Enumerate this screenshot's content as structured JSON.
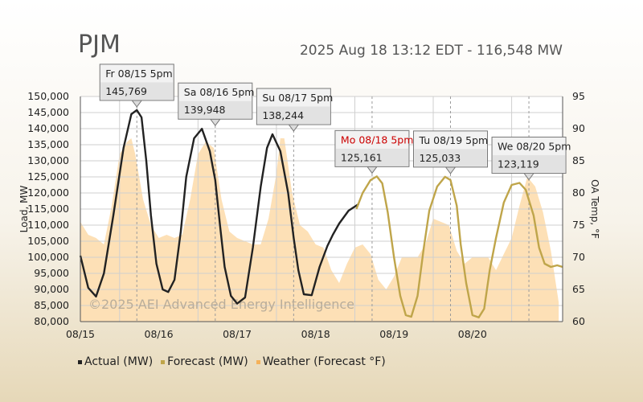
{
  "header": {
    "region": "PJM",
    "timestamp": "2025 Aug 18 13:12 EDT",
    "separator": " - ",
    "current_load": "116,548 MW"
  },
  "watermark": "©2025 AEI Advanced Energy Intelligence",
  "colors": {
    "actual": "#222222",
    "forecast": "#bfa54a",
    "weather": "#f5b25a",
    "weather_fill": "#fde0b6",
    "highlight_label": "#cc0000"
  },
  "legend": [
    {
      "label": "Actual (MW)",
      "color": "#222222"
    },
    {
      "label": "Forecast (MW)",
      "color": "#bfa54a"
    },
    {
      "label": "Weather (Forecast °F)",
      "color": "#f5b25a"
    }
  ],
  "chart_data": {
    "type": "line",
    "xlabel": "",
    "ylabel": "Load, MW",
    "y2label": "OA Temp, °F",
    "x_ticks": [
      "08/15",
      "08/16",
      "08/17",
      "08/18",
      "08/19",
      "08/20"
    ],
    "ylim": [
      80000,
      150000
    ],
    "y_ticks": [
      "80,000",
      "85,000",
      "90,000",
      "95,000",
      "100,000",
      "105,000",
      "110,000",
      "115,000",
      "120,000",
      "125,000",
      "130,000",
      "135,000",
      "140,000",
      "145,000",
      "150,000"
    ],
    "y2lim": [
      60,
      95
    ],
    "y2_ticks": [
      "60",
      "65",
      "70",
      "75",
      "80",
      "85",
      "90",
      "95"
    ],
    "grid": true,
    "x_day_range": [
      0,
      6.15
    ],
    "series": [
      {
        "name": "Actual (MW)",
        "x": [
          0,
          0.1,
          0.2,
          0.3,
          0.42,
          0.55,
          0.65,
          0.72,
          0.78,
          0.84,
          0.9,
          0.97,
          1.05,
          1.12,
          1.2,
          1.28,
          1.35,
          1.45,
          1.55,
          1.65,
          1.72,
          1.78,
          1.84,
          1.92,
          2.0,
          2.1,
          2.2,
          2.3,
          2.38,
          2.45,
          2.55,
          2.65,
          2.72,
          2.78,
          2.85,
          2.95,
          3.05,
          3.15,
          3.22,
          3.3,
          3.42,
          3.55
        ],
        "y": [
          100500,
          90500,
          87800,
          95000,
          113000,
          134000,
          144500,
          145769,
          143500,
          130000,
          113000,
          98000,
          90000,
          89200,
          93000,
          108000,
          125000,
          137000,
          139948,
          133000,
          124000,
          110000,
          97000,
          88000,
          85600,
          87500,
          103000,
          122000,
          134000,
          138244,
          133000,
          120000,
          106000,
          96000,
          88500,
          88200,
          97000,
          103500,
          107000,
          110500,
          114500,
          116548
        ]
      },
      {
        "name": "Forecast (MW)",
        "x": [
          3.52,
          3.6,
          3.7,
          3.78,
          3.85,
          3.92,
          4.0,
          4.08,
          4.15,
          4.22,
          4.3,
          4.38,
          4.45,
          4.55,
          4.65,
          4.72,
          4.8,
          4.85,
          4.92,
          5.0,
          5.08,
          5.15,
          5.22,
          5.3,
          5.4,
          5.5,
          5.6,
          5.68,
          5.78,
          5.85,
          5.92,
          6.0,
          6.08,
          6.15
        ],
        "y": [
          115000,
          120000,
          124000,
          125161,
          123000,
          114000,
          100000,
          88000,
          82000,
          81500,
          88000,
          103000,
          114500,
          122000,
          125033,
          124000,
          116000,
          104000,
          92000,
          82000,
          81300,
          84000,
          96000,
          106000,
          117000,
          122500,
          123119,
          121000,
          113000,
          103000,
          98000,
          97000,
          97500,
          97000
        ]
      },
      {
        "name": "Weather (Forecast °F)",
        "x": [
          0,
          0.1,
          0.2,
          0.3,
          0.4,
          0.5,
          0.6,
          0.65,
          0.7,
          0.8,
          0.9,
          1.0,
          1.1,
          1.2,
          1.3,
          1.4,
          1.5,
          1.6,
          1.7,
          1.8,
          1.9,
          2.0,
          2.1,
          2.2,
          2.3,
          2.4,
          2.5,
          2.55,
          2.6,
          2.7,
          2.8,
          2.9,
          3.0,
          3.1,
          3.2,
          3.3,
          3.4,
          3.5,
          3.6,
          3.7,
          3.8,
          3.9,
          4.0,
          4.1,
          4.2,
          4.3,
          4.4,
          4.5,
          4.6,
          4.7,
          4.8,
          4.9,
          5.0,
          5.1,
          5.2,
          5.3,
          5.4,
          5.5,
          5.6,
          5.7,
          5.8,
          5.9,
          6.0,
          6.1
        ],
        "y": [
          75.5,
          73.5,
          73,
          72,
          78,
          86,
          88,
          88.5,
          86,
          79,
          75,
          73,
          73.5,
          73,
          73.5,
          79,
          86,
          88,
          87,
          79,
          74,
          73,
          72.5,
          72,
          72,
          76,
          83,
          88.5,
          88.5,
          80,
          75,
          74,
          72,
          71.5,
          68,
          66,
          69,
          71.5,
          72,
          70.5,
          66.5,
          65,
          67,
          70,
          70,
          70,
          72,
          76,
          75.5,
          75,
          71,
          69,
          70,
          70,
          70,
          68,
          70.5,
          73,
          78,
          82.5,
          81,
          77,
          71,
          63
        ]
      }
    ],
    "annotations": [
      {
        "day": "Fr 08/15 5pm",
        "value": "145,769",
        "x": 0.72,
        "y": 145769,
        "highlight": false
      },
      {
        "day": "Sa 08/16 5pm",
        "value": "139,948",
        "x": 1.72,
        "y": 139948,
        "highlight": false
      },
      {
        "day": "Su 08/17 5pm",
        "value": "138,244",
        "x": 2.72,
        "y": 138244,
        "highlight": false
      },
      {
        "day": "Mo 08/18 5pm",
        "value": "125,161",
        "x": 3.72,
        "y": 125161,
        "highlight": true
      },
      {
        "day": "Tu 08/19 5pm",
        "value": "125,033",
        "x": 4.72,
        "y": 125033,
        "highlight": false
      },
      {
        "day": "We 08/20 5pm",
        "value": "123,119",
        "x": 5.72,
        "y": 123119,
        "highlight": false
      }
    ]
  }
}
